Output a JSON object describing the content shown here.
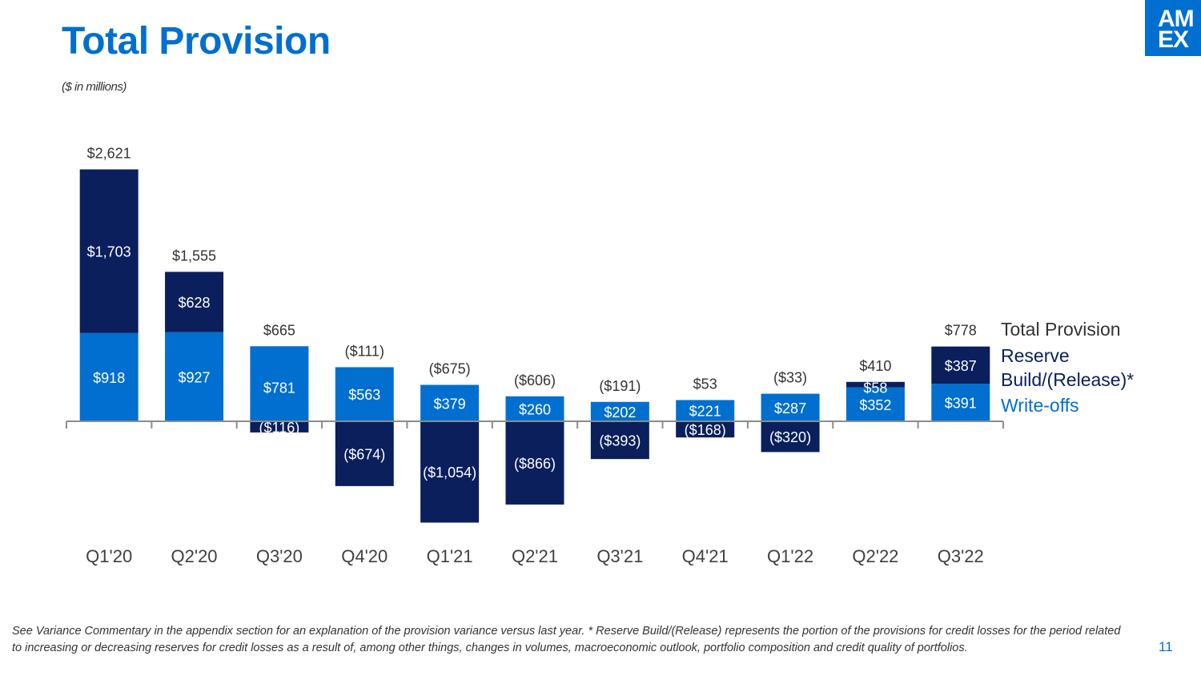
{
  "header": {
    "title": "Total Provision",
    "subtitle": "($ in millions)",
    "logo_line1": "AM",
    "logo_line2": "EX"
  },
  "colors": {
    "accent": "#006fcf",
    "reserve": "#0a1f5c",
    "writeoffs": "#006fcf",
    "text": "#333333"
  },
  "chart_data": {
    "type": "bar",
    "stacked": true,
    "categories": [
      "Q1'20",
      "Q2'20",
      "Q3'20",
      "Q4'20",
      "Q1'21",
      "Q2'21",
      "Q3'21",
      "Q4'21",
      "Q1'22",
      "Q2'22",
      "Q3'22"
    ],
    "series": [
      {
        "name": "Write-offs",
        "values": [
          918,
          927,
          781,
          563,
          379,
          260,
          202,
          221,
          287,
          352,
          391
        ],
        "color": "#006fcf"
      },
      {
        "name": "Reserve Build/(Release)*",
        "values": [
          1703,
          628,
          -116,
          -674,
          -1054,
          -866,
          -393,
          -168,
          -320,
          58,
          387
        ],
        "color": "#0a1f5c"
      }
    ],
    "writeoff_labels": [
      "$918",
      "$927",
      "$781",
      "$563",
      "$379",
      "$260",
      "$202",
      "$221",
      "$287",
      "$352",
      "$391"
    ],
    "reserve_labels": [
      "$1,703",
      "$628",
      "($116)",
      "($674)",
      "($1,054)",
      "($866)",
      "($393)",
      "($168)",
      "($320)",
      "$58",
      "$387"
    ],
    "totals": [
      2621,
      1555,
      665,
      -111,
      -675,
      -606,
      -191,
      53,
      -33,
      410,
      778
    ],
    "total_labels": [
      "$2,621",
      "$1,555",
      "$665",
      "($111)",
      "($675)",
      "($606)",
      "($191)",
      "$53",
      "($33)",
      "$410",
      "$778"
    ],
    "ylim": [
      -1054,
      2621
    ],
    "legend": [
      "Total Provision",
      "Reserve Build/(Release)*",
      "Write-offs"
    ],
    "legend_position": "right"
  },
  "legend": {
    "total": "Total Provision",
    "reserve_line1": "Reserve",
    "reserve_line2": "Build/(Release)*",
    "writeoffs": "Write-offs"
  },
  "footnote": "See Variance Commentary in the appendix section for an explanation of the provision variance versus last year. * Reserve Build/(Release) represents the portion of the provisions for credit losses for the period related to increasing or decreasing reserves for credit losses as a result of, among other things, changes in volumes, macroeconomic outlook, portfolio composition and credit quality of portfolios.",
  "page_number": "11"
}
